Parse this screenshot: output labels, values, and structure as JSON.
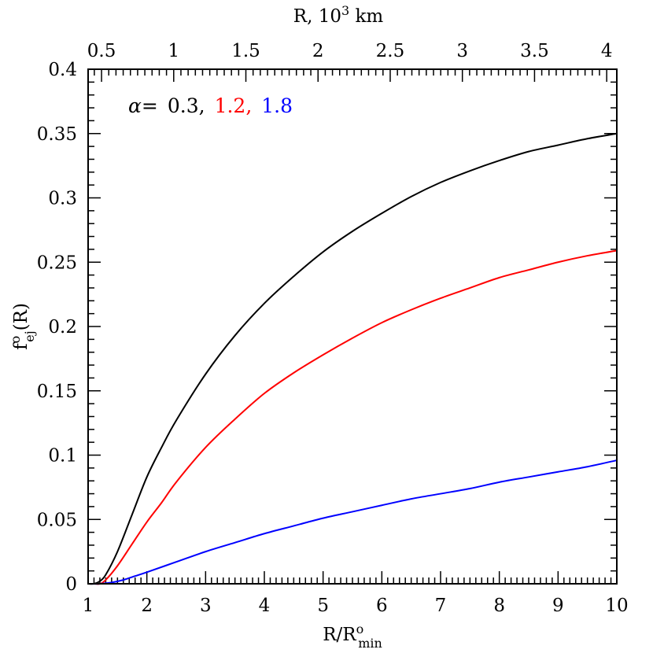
{
  "chart_data": {
    "type": "line",
    "xlabel": {
      "main": "R/R",
      "sup": "o",
      "sub": "min"
    },
    "ylabel": {
      "main": "f",
      "sup": "o",
      "sub": "ej",
      "tail": "(R)"
    },
    "top_xlabel": {
      "main": "R,  10",
      "sup": "3",
      "tail": " km"
    },
    "xlim": [
      1,
      10
    ],
    "ylim": [
      0,
      0.4
    ],
    "x_ticks": [
      "1",
      "2",
      "3",
      "4",
      "5",
      "6",
      "7",
      "8",
      "9",
      "10"
    ],
    "y_ticks": [
      "0",
      "0.05",
      "0.1",
      "0.15",
      "0.2",
      "0.25",
      "0.3",
      "0.35",
      "0.4"
    ],
    "top_x_ticks": [
      "0.5",
      "1",
      "1.5",
      "2",
      "2.5",
      "3",
      "3.5",
      "4"
    ],
    "top_axis_km_per_unit": 0.407,
    "legend": {
      "prefix": "α=",
      "entries": [
        {
          "text": "0.3,",
          "color": "#000000"
        },
        {
          "text": "1.2,",
          "color": "#ff0000"
        },
        {
          "text": "1.8",
          "color": "#0000ff"
        }
      ]
    },
    "grid": false,
    "series": [
      {
        "color": "#000000",
        "x": [
          1.0,
          1.1,
          1.2,
          1.3,
          1.5,
          1.75,
          2.0,
          2.25,
          2.5,
          3.0,
          3.5,
          4.0,
          4.5,
          5.0,
          5.5,
          6.0,
          6.5,
          7.0,
          7.5,
          8.0,
          8.5,
          9.0,
          9.5,
          10.0
        ],
        "y": [
          0.0,
          0.0,
          0.002,
          0.007,
          0.025,
          0.054,
          0.083,
          0.106,
          0.127,
          0.163,
          0.193,
          0.218,
          0.239,
          0.258,
          0.274,
          0.288,
          0.301,
          0.312,
          0.321,
          0.329,
          0.336,
          0.341,
          0.346,
          0.35
        ]
      },
      {
        "color": "#ff0000",
        "x": [
          1.0,
          1.1,
          1.2,
          1.3,
          1.5,
          1.75,
          2.0,
          2.25,
          2.5,
          3.0,
          3.5,
          4.0,
          4.5,
          5.0,
          5.5,
          6.0,
          6.5,
          7.0,
          7.5,
          8.0,
          8.5,
          9.0,
          9.5,
          10.0
        ],
        "y": [
          0.0,
          0.0,
          0.0,
          0.003,
          0.014,
          0.031,
          0.048,
          0.063,
          0.079,
          0.106,
          0.128,
          0.148,
          0.164,
          0.178,
          0.191,
          0.203,
          0.213,
          0.222,
          0.23,
          0.238,
          0.244,
          0.25,
          0.255,
          0.259
        ]
      },
      {
        "color": "#0000ff",
        "x": [
          1.0,
          1.2,
          1.4,
          1.6,
          1.8,
          2.0,
          2.5,
          3.0,
          3.5,
          4.0,
          4.5,
          5.0,
          5.5,
          6.0,
          6.5,
          7.0,
          7.5,
          8.0,
          8.5,
          9.0,
          9.5,
          10.0
        ],
        "y": [
          0.0,
          0.0,
          0.001,
          0.003,
          0.006,
          0.009,
          0.017,
          0.025,
          0.032,
          0.039,
          0.045,
          0.051,
          0.056,
          0.061,
          0.066,
          0.07,
          0.074,
          0.079,
          0.083,
          0.087,
          0.091,
          0.096
        ]
      }
    ]
  }
}
